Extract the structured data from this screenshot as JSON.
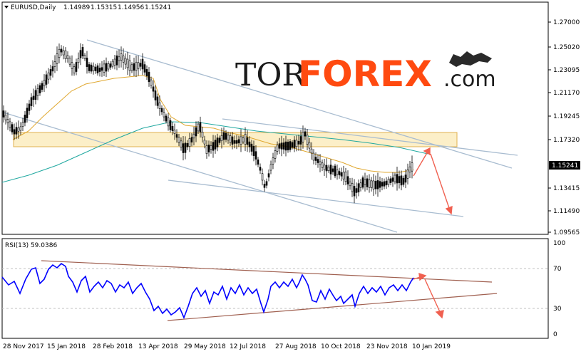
{
  "main_chart": {
    "header": {
      "menu_icon": "triangle-down-icon",
      "symbol_label": "EURUSD,Daily",
      "open": "1.14989",
      "high": "1.15315",
      "low": "1.14956",
      "close": "1.15241"
    },
    "price_axis": [
      "1.27000",
      "1.25020",
      "1.23095",
      "1.21170",
      "1.19245",
      "1.17320",
      "1.15241",
      "1.13415",
      "1.11490",
      "1.09565"
    ],
    "current_price": "1.15241",
    "watermark": {
      "part1": "TOR",
      "part2": "FOREX",
      "part3": ".com",
      "icon": "bull-bear-icon"
    },
    "colors": {
      "candles": "#000000",
      "ma_fast": "#e0a830",
      "ma_slow": "#20a8a0",
      "trendlines": "#a8bcd0",
      "forecast_arrows": "#f06050",
      "zone_fill": "#fbe9b5",
      "zone_border": "#e0b050"
    }
  },
  "rsi_panel": {
    "label": "RSI(13) 59.0386",
    "levels": [
      "100",
      "70",
      "30",
      "0"
    ],
    "colors": {
      "rsi_line": "#0000ff",
      "trendlines": "#a06050",
      "forecast_arrows": "#f06050"
    }
  },
  "time_axis": [
    "28 Nov 2017",
    "15 Jan 2018",
    "28 Feb 2018",
    "13 Apr 2018",
    "29 May 2018",
    "12 Jul 2018",
    "27 Aug 2018",
    "10 Oct 2018",
    "23 Nov 2018",
    "10 Jan 2019"
  ]
}
